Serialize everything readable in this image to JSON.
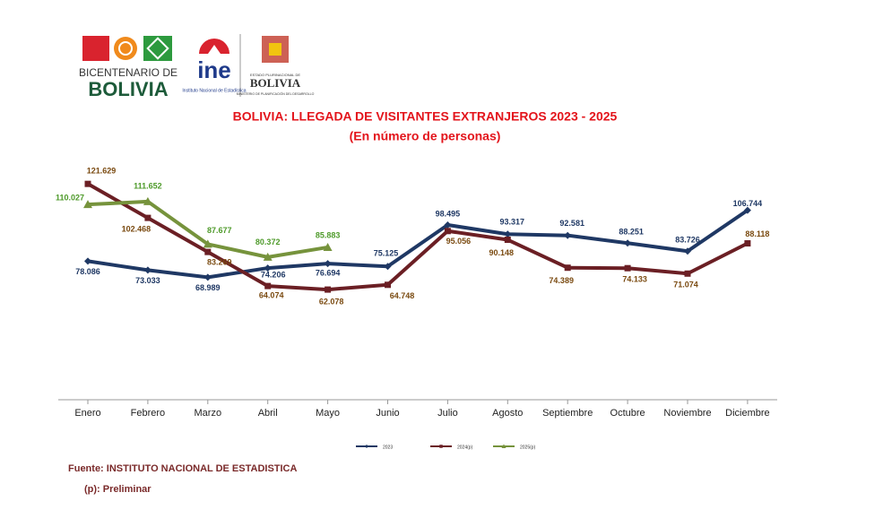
{
  "header": {
    "bicentenario": "BICENTENARIO DE",
    "bolivia": "BOLIVIA",
    "ine": "ine",
    "ine_name": "Instituto Nacional de Estadística",
    "estado": "ESTADO PLURINACIONAL DE",
    "estado_bolivia": "BOLIVIA",
    "ministerio": "MINISTERIO DE PLANIFICACIÓN DEL DESARROLLO"
  },
  "chart_data": {
    "type": "line",
    "title": "BOLIVIA: LLEGADA DE VISITANTES EXTRANJEROS 2023 - 2025",
    "subtitle": "(En número de personas)",
    "categories": [
      "Enero",
      "Febrero",
      "Marzo",
      "Abril",
      "Mayo",
      "Junio",
      "Julio",
      "Agosto",
      "Septiembre",
      "Octubre",
      "Noviembre",
      "Diciembre"
    ],
    "ylim": [
      0,
      125000
    ],
    "series": [
      {
        "name": "2023",
        "color": "#1f3864",
        "label_color": "#1f3864",
        "marker": "diamond",
        "values": [
          78086,
          73033,
          68989,
          74206,
          76694,
          75125,
          98495,
          93317,
          92581,
          88251,
          83726,
          106744
        ],
        "value_labels": [
          "78.086",
          "73.033",
          "68.989",
          "74.206",
          "76.694",
          "75.125",
          "98.495",
          "93.317",
          "92.581",
          "88.251",
          "83.726",
          "106.744"
        ]
      },
      {
        "name": "2024(p)",
        "color": "#6b1f24",
        "label_color": "#7a4a10",
        "marker": "square",
        "values": [
          121629,
          102468,
          83269,
          64074,
          62078,
          64748,
          95056,
          90148,
          74389,
          74133,
          71074,
          88118
        ],
        "value_labels": [
          "121.629",
          "102.468",
          "83.269",
          "64.074",
          "62.078",
          "64.748",
          "95.056",
          "90.148",
          "74.389",
          "74.133",
          "71.074",
          "88.118"
        ]
      },
      {
        "name": "2025(p)",
        "color": "#76933c",
        "label_color": "#4e9a2a",
        "marker": "triangle",
        "values": [
          110027,
          111652,
          87677,
          80372,
          85883,
          null,
          null,
          null,
          null,
          null,
          null,
          null
        ],
        "value_labels": [
          "110.027",
          "111.652",
          "87.677",
          "80.372",
          "85.883",
          null,
          null,
          null,
          null,
          null,
          null,
          null
        ]
      }
    ]
  },
  "footer": {
    "source": "Fuente: INSTITUTO NACIONAL DE ESTADISTICA",
    "note": "(p): Preliminar"
  }
}
